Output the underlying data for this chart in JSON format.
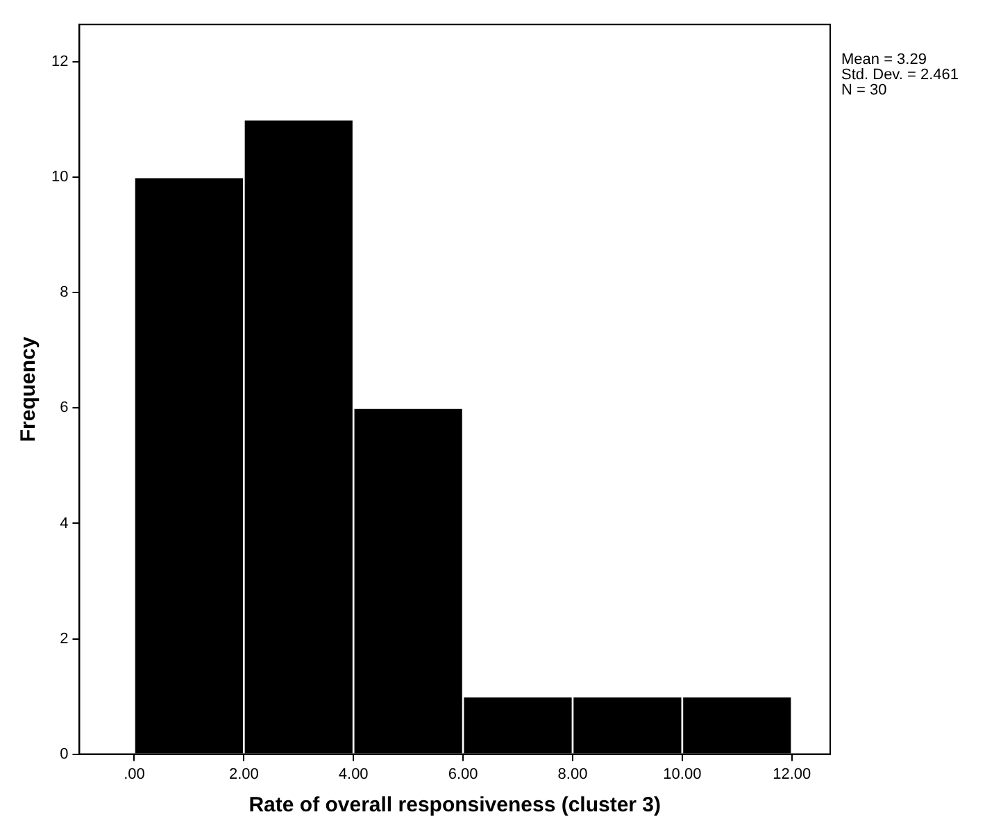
{
  "chart_data": {
    "type": "histogram",
    "xlabel": "Rate of overall responsiveness (cluster 3)",
    "ylabel": "Frequency",
    "bins": [
      0,
      2,
      4,
      6,
      8,
      10,
      12
    ],
    "values": [
      10,
      11,
      6,
      1,
      1,
      1
    ],
    "color": "#000000",
    "xlim": [
      -1,
      12.7
    ],
    "xticks": [
      {
        "value": 0,
        "label": ".00"
      },
      {
        "value": 2,
        "label": "2.00"
      },
      {
        "value": 4,
        "label": "4.00"
      },
      {
        "value": 6,
        "label": "6.00"
      },
      {
        "value": 8,
        "label": "8.00"
      },
      {
        "value": 10,
        "label": "10.00"
      },
      {
        "value": 12,
        "label": "12.00"
      }
    ],
    "ylim": [
      0,
      12.65
    ],
    "yticks": [
      0,
      2,
      4,
      6,
      8,
      10,
      12
    ],
    "grid": false,
    "legend": false,
    "annotations": [
      "Mean = 3.29",
      "Std. Dev. = 2.461",
      "N = 30"
    ]
  }
}
